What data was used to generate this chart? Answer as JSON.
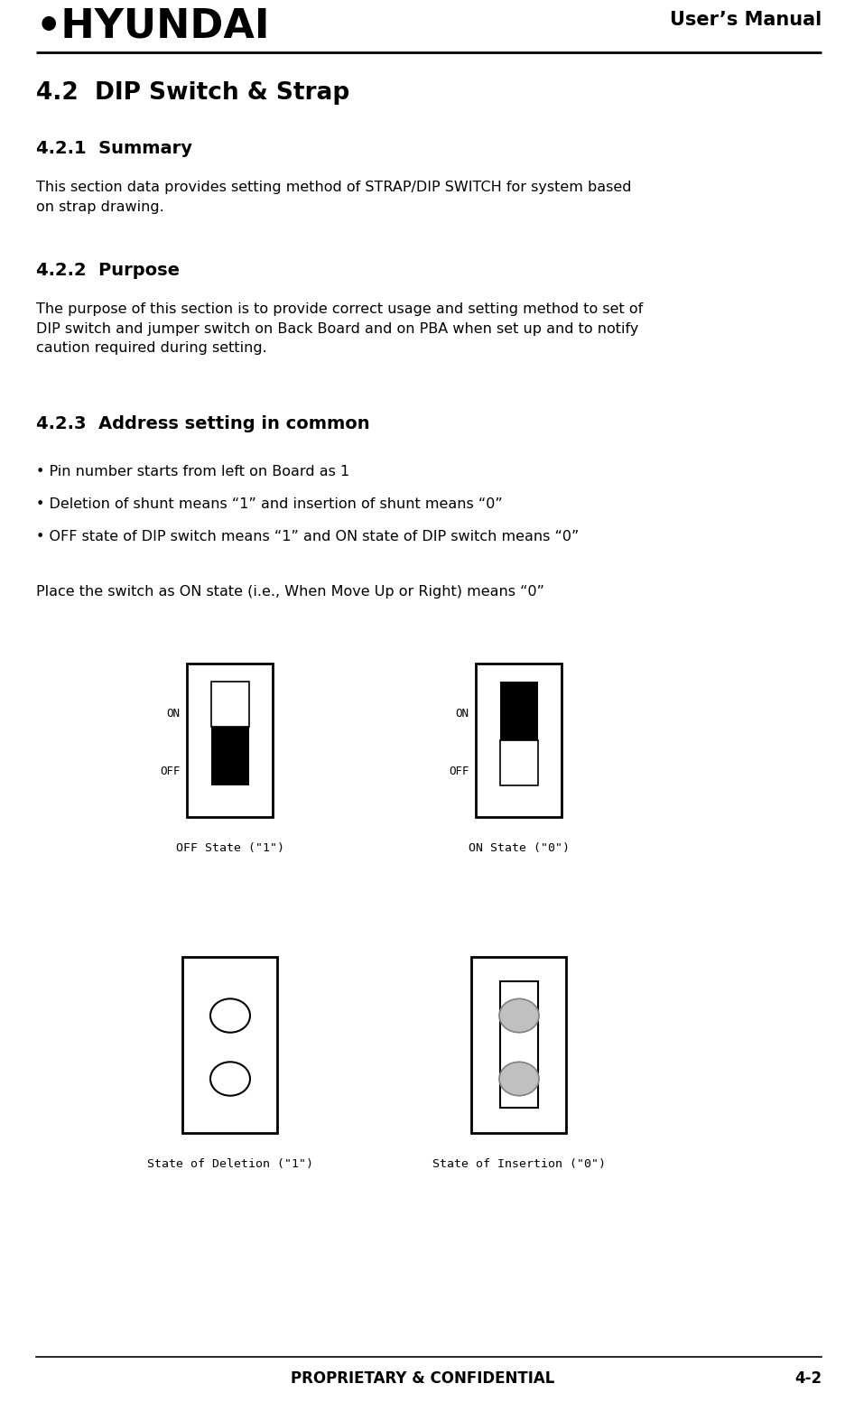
{
  "title_right": "User’s Manual",
  "section_title": "4.2  DIP Switch & Strap",
  "sub1_title": "4.2.1  Summary",
  "sub1_body": "This section data provides setting method of STRAP/DIP SWITCH for system based\non strap drawing.",
  "sub2_title": "4.2.2  Purpose",
  "sub2_body": "The purpose of this section is to provide correct usage and setting method to set of\nDIP switch and jumper switch on Back Board and on PBA when set up and to notify\ncaution required during setting.",
  "sub3_title": "4.2.3  Address setting in common",
  "bullets": [
    "• Pin number starts from left on Board as 1",
    "• Deletion of shunt means “1” and insertion of shunt means “0”",
    "• OFF state of DIP switch means “1” and ON state of DIP switch means “0”"
  ],
  "place_text": "Place the switch as ON state (i.e., When Move Up or Right) means “0”",
  "footer_center": "PROPRIETARY & CONFIDENTIAL",
  "footer_right": "4-2",
  "bg_color": "#ffffff",
  "text_color": "#000000"
}
